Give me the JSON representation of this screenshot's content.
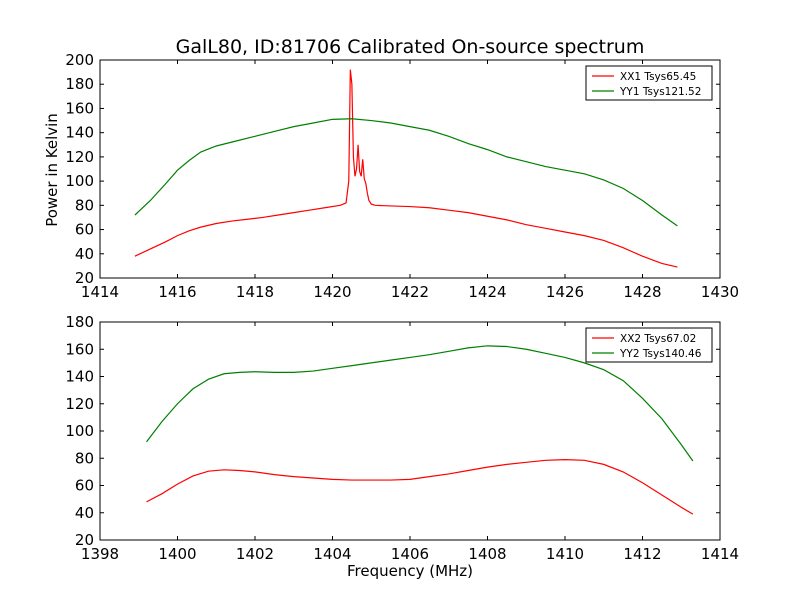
{
  "figure": {
    "title": "GalL80, ID:81706 Calibrated On-source spectrum",
    "xlabel": "Frequency (MHz)",
    "ylabel": "Power in Kelvin"
  },
  "chart_data": [
    {
      "type": "line",
      "title": "GalL80, ID:81706 Calibrated On-source spectrum",
      "xlabel": "",
      "ylabel": "Power in Kelvin",
      "xlim": [
        1414,
        1430
      ],
      "ylim": [
        20,
        200
      ],
      "xticks": [
        1414,
        1416,
        1418,
        1420,
        1422,
        1424,
        1426,
        1428,
        1430
      ],
      "yticks": [
        20,
        40,
        60,
        80,
        100,
        120,
        140,
        160,
        180,
        200
      ],
      "grid": false,
      "legend_position": "top-right",
      "series": [
        {
          "name": "XX1 Tsys65.45",
          "color": "#ff0000",
          "x": [
            1414.9,
            1415.3,
            1415.7,
            1416.0,
            1416.3,
            1416.6,
            1417.0,
            1417.4,
            1417.8,
            1418.2,
            1418.6,
            1419.0,
            1419.4,
            1419.8,
            1420.2,
            1420.35,
            1420.42,
            1420.46,
            1420.5,
            1420.54,
            1420.58,
            1420.62,
            1420.66,
            1420.7,
            1420.74,
            1420.78,
            1420.82,
            1420.86,
            1420.9,
            1420.94,
            1421.0,
            1421.1,
            1421.5,
            1422.0,
            1422.5,
            1423.0,
            1423.5,
            1424.0,
            1424.5,
            1425.0,
            1425.5,
            1426.0,
            1426.5,
            1427.0,
            1427.5,
            1428.0,
            1428.5,
            1428.9
          ],
          "values": [
            38,
            44,
            50,
            55,
            59,
            62,
            65,
            67,
            68.5,
            70,
            72,
            74,
            76,
            78,
            80,
            82,
            100,
            192,
            180,
            120,
            104,
            110,
            130,
            108,
            104,
            118,
            102,
            98,
            90,
            84,
            81,
            80,
            79.5,
            79,
            78,
            76,
            74,
            71,
            68,
            64,
            61,
            58,
            55,
            51,
            45,
            38,
            32,
            29
          ]
        },
        {
          "name": "YY1 Tsys121.52",
          "color": "#008000",
          "x": [
            1414.9,
            1415.3,
            1415.7,
            1416.0,
            1416.3,
            1416.6,
            1417.0,
            1417.5,
            1418.0,
            1418.5,
            1419.0,
            1419.5,
            1420.0,
            1420.5,
            1421.0,
            1421.5,
            1422.0,
            1422.5,
            1423.0,
            1423.5,
            1424.0,
            1424.5,
            1425.0,
            1425.5,
            1426.0,
            1426.5,
            1427.0,
            1427.5,
            1428.0,
            1428.5,
            1428.9
          ],
          "values": [
            72,
            84,
            98,
            109,
            117,
            124,
            129,
            133,
            137,
            141,
            145,
            148,
            151,
            151.5,
            150,
            148,
            145,
            142,
            137,
            131,
            126,
            120,
            116,
            112,
            109,
            106,
            101,
            94,
            84,
            72,
            63
          ]
        }
      ]
    },
    {
      "type": "line",
      "title": "",
      "xlabel": "Frequency (MHz)",
      "ylabel": "",
      "xlim": [
        1398,
        1414
      ],
      "ylim": [
        20,
        180
      ],
      "xticks": [
        1398,
        1400,
        1402,
        1404,
        1406,
        1408,
        1410,
        1412,
        1414
      ],
      "yticks": [
        20,
        40,
        60,
        80,
        100,
        120,
        140,
        160,
        180
      ],
      "grid": false,
      "legend_position": "top-right",
      "series": [
        {
          "name": "XX2 Tsys67.02",
          "color": "#ff0000",
          "x": [
            1399.2,
            1399.6,
            1400.0,
            1400.4,
            1400.8,
            1401.2,
            1401.6,
            1402.0,
            1402.5,
            1403.0,
            1403.5,
            1404.0,
            1404.5,
            1405.0,
            1405.5,
            1406.0,
            1406.5,
            1407.0,
            1407.5,
            1408.0,
            1408.5,
            1409.0,
            1409.5,
            1410.0,
            1410.5,
            1411.0,
            1411.5,
            1412.0,
            1412.5,
            1413.0,
            1413.3
          ],
          "values": [
            48,
            54,
            61,
            67,
            70.5,
            71.5,
            71,
            70,
            68,
            66.5,
            65.5,
            64.5,
            64,
            64,
            64,
            64.5,
            66.5,
            68.5,
            71,
            73.5,
            75.5,
            77,
            78.5,
            79,
            78.5,
            75.5,
            70,
            62,
            53,
            44,
            39
          ]
        },
        {
          "name": "YY2 Tsys140.46",
          "color": "#008000",
          "x": [
            1399.2,
            1399.6,
            1400.0,
            1400.4,
            1400.8,
            1401.2,
            1401.6,
            1402.0,
            1402.5,
            1403.0,
            1403.5,
            1404.0,
            1404.5,
            1405.0,
            1405.5,
            1406.0,
            1406.5,
            1407.0,
            1407.5,
            1408.0,
            1408.5,
            1409.0,
            1409.5,
            1410.0,
            1410.5,
            1411.0,
            1411.5,
            1412.0,
            1412.5,
            1413.0,
            1413.3
          ],
          "values": [
            92,
            107,
            120,
            131,
            138,
            142,
            143,
            143.5,
            143,
            143,
            144,
            146,
            148,
            150,
            152,
            154,
            156,
            158.5,
            161,
            162.5,
            162,
            160,
            157,
            154,
            150,
            145,
            137,
            124,
            109,
            90,
            78
          ]
        }
      ]
    }
  ]
}
